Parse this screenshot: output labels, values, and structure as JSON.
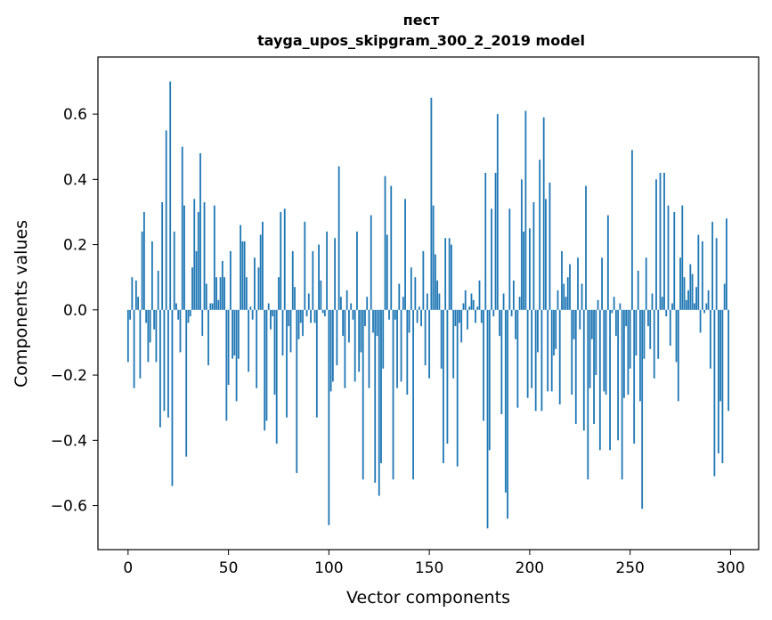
{
  "chart_data": {
    "type": "bar",
    "title_lines": [
      "пест",
      "tayga_upos_skipgram_300_2_2019 model"
    ],
    "xlabel": "Vector components",
    "ylabel": "Components values",
    "xlim": [
      -15,
      314
    ],
    "ylim": [
      -0.735,
      0.775
    ],
    "xticks": [
      0,
      50,
      100,
      150,
      200,
      250,
      300
    ],
    "yticks": [
      -0.6,
      -0.4,
      -0.2,
      0.0,
      0.2,
      0.4,
      0.6
    ],
    "ytick_labels": [
      "−0.6",
      "−0.4",
      "−0.2",
      "0.0",
      "0.2",
      "0.4",
      "0.6"
    ],
    "bar_color": "#1f77b4",
    "grid": false,
    "x": "0..299",
    "values": [
      -0.16,
      -0.03,
      0.1,
      -0.24,
      0.09,
      0.04,
      -0.21,
      0.24,
      0.3,
      -0.04,
      -0.16,
      -0.1,
      0.21,
      -0.06,
      -0.16,
      0.12,
      -0.36,
      0.33,
      -0.31,
      0.55,
      -0.33,
      0.7,
      -0.54,
      0.24,
      0.02,
      -0.03,
      -0.13,
      0.5,
      0.32,
      -0.45,
      -0.04,
      -0.02,
      0.13,
      0.34,
      0.18,
      0.3,
      0.48,
      -0.08,
      0.33,
      0.08,
      -0.17,
      0.02,
      0.02,
      0.32,
      0.1,
      0.03,
      0.1,
      0.15,
      0.1,
      -0.34,
      -0.23,
      0.18,
      -0.15,
      -0.14,
      -0.28,
      -0.15,
      0.26,
      0.21,
      0.21,
      0.1,
      -0.19,
      0.01,
      -0.03,
      0.16,
      -0.24,
      0.13,
      0.23,
      0.27,
      -0.37,
      -0.34,
      0.02,
      -0.06,
      -0.02,
      -0.26,
      -0.41,
      0.1,
      0.3,
      -0.14,
      0.31,
      -0.33,
      -0.05,
      -0.13,
      0.18,
      0.07,
      -0.5,
      -0.09,
      -0.04,
      -0.08,
      0.27,
      -0.02,
      0.05,
      -0.04,
      0.18,
      -0.04,
      -0.33,
      0.2,
      0.09,
      -0.01,
      -0.02,
      0.24,
      -0.66,
      -0.25,
      -0.22,
      0.22,
      -0.17,
      0.44,
      0.04,
      -0.08,
      -0.24,
      0.06,
      -0.1,
      0.02,
      -0.03,
      -0.22,
      0.24,
      -0.19,
      -0.13,
      -0.52,
      -0.05,
      0.04,
      -0.24,
      0.29,
      -0.07,
      -0.53,
      -0.08,
      -0.57,
      -0.47,
      -0.18,
      0.41,
      0.23,
      -0.03,
      0.38,
      -0.52,
      -0.03,
      -0.24,
      0.08,
      -0.22,
      0.04,
      0.34,
      -0.26,
      -0.07,
      0.13,
      -0.52,
      0.1,
      -0.04,
      0.01,
      -0.05,
      0.18,
      -0.17,
      0.05,
      -0.21,
      0.65,
      0.32,
      0.17,
      0.09,
      0.05,
      -0.18,
      -0.47,
      0.22,
      -0.41,
      0.22,
      0.2,
      -0.21,
      -0.05,
      -0.48,
      -0.04,
      -0.1,
      0.02,
      0.06,
      -0.06,
      0.01,
      0.05,
      0.03,
      -0.04,
      0.01,
      0.09,
      -0.04,
      -0.34,
      0.42,
      -0.67,
      -0.43,
      0.31,
      -0.02,
      0.42,
      0.6,
      -0.08,
      -0.32,
      0.05,
      -0.56,
      -0.64,
      0.31,
      -0.02,
      0.09,
      -0.09,
      -0.3,
      0.04,
      0.4,
      0.24,
      0.61,
      -0.27,
      0.25,
      -0.24,
      0.33,
      -0.31,
      -0.13,
      0.46,
      -0.31,
      0.59,
      0.34,
      -0.25,
      0.39,
      -0.25,
      -0.14,
      -0.12,
      0.06,
      -0.29,
      0.18,
      0.08,
      0.04,
      0.1,
      0.14,
      -0.26,
      -0.09,
      -0.35,
      0.16,
      -0.06,
      0.08,
      -0.37,
      0.38,
      -0.52,
      -0.24,
      -0.09,
      -0.35,
      -0.2,
      0.03,
      -0.43,
      0.16,
      -0.25,
      -0.26,
      0.29,
      -0.43,
      -0.01,
      0.04,
      -0.08,
      -0.4,
      0.02,
      -0.52,
      -0.27,
      -0.05,
      -0.26,
      -0.18,
      0.49,
      -0.41,
      -0.14,
      0.12,
      -0.28,
      -0.61,
      -0.15,
      0.16,
      -0.05,
      -0.12,
      0.05,
      -0.21,
      0.4,
      -0.15,
      0.42,
      0.04,
      0.42,
      -0.02,
      0.32,
      -0.11,
      0.02,
      0.3,
      -0.16,
      -0.28,
      0.16,
      0.32,
      0.1,
      0.03,
      0.06,
      0.14,
      0.11,
      0.02,
      0.07,
      0.23,
      -0.07,
      0.21,
      -0.01,
      0.02,
      0.06,
      -0.18,
      0.27,
      -0.51,
      0.22,
      -0.44,
      -0.28,
      -0.47,
      0.08,
      0.28,
      -0.31
    ]
  }
}
